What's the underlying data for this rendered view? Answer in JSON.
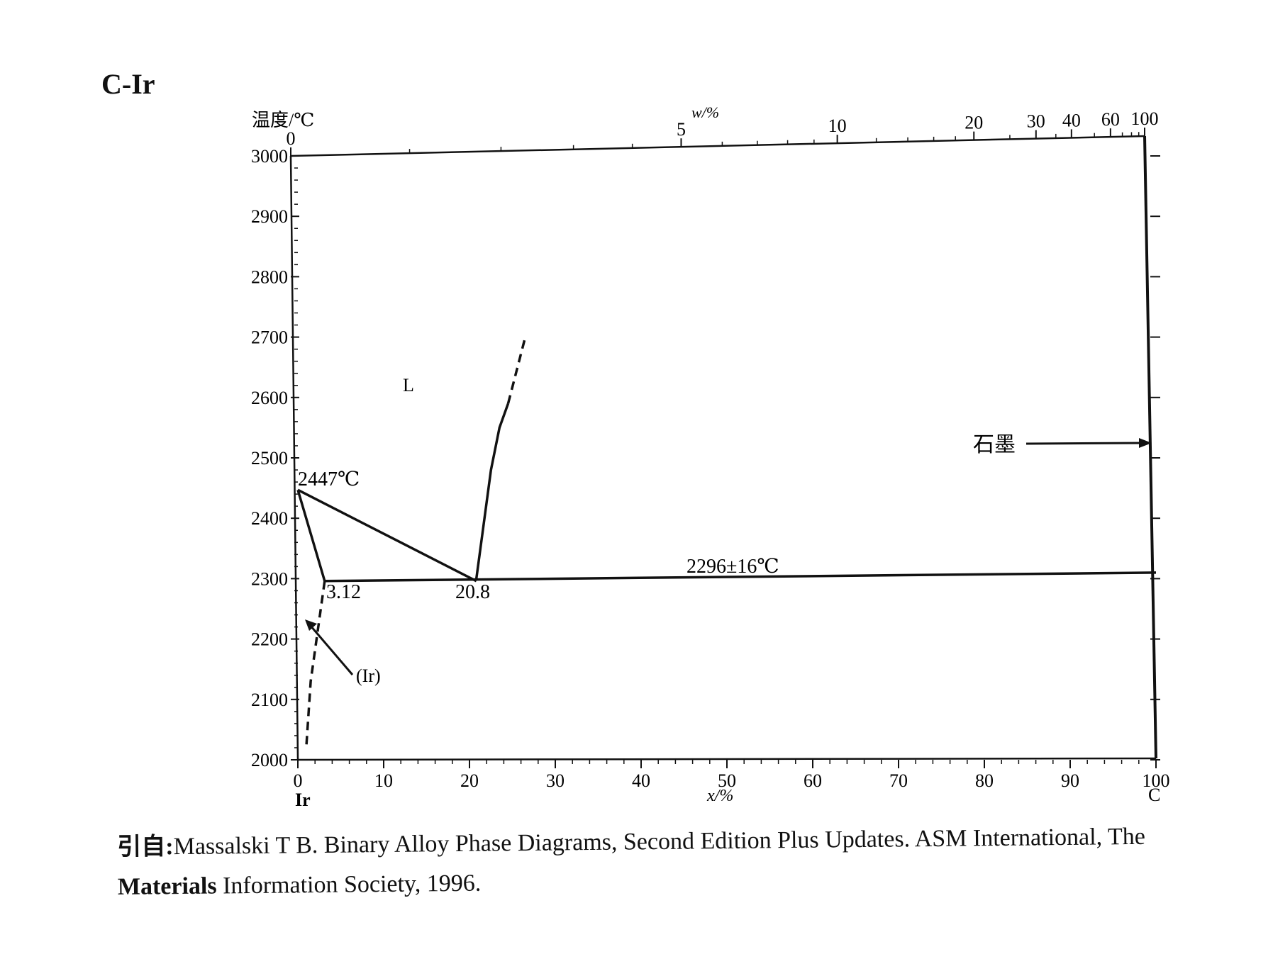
{
  "title": "C-Ir",
  "axes": {
    "y_label": "温度/℃",
    "y_ticks": [
      "3000",
      "2900",
      "2800",
      "2700",
      "2600",
      "2500",
      "2400",
      "2300",
      "2200",
      "2100",
      "2000"
    ],
    "x_bottom_label": "x/%",
    "x_bottom_ticks": [
      "0",
      "10",
      "20",
      "30",
      "40",
      "50",
      "60",
      "70",
      "80",
      "90",
      "100"
    ],
    "x_top_label": "w/%",
    "x_top_ticks": [
      "0",
      "5",
      "10",
      "20",
      "30",
      "40",
      "60",
      "100"
    ],
    "left_element": "Ir",
    "right_element": "C"
  },
  "labels": {
    "liquid": "L",
    "ir_melting": "2447℃",
    "solubility": "3.12",
    "eutectic_comp": "20.8",
    "eutectic_temp": "2296±16℃",
    "ir_phase": "(Ir)",
    "graphite": "石墨"
  },
  "chart_data": {
    "type": "phase_diagram",
    "system": "C-Ir",
    "xlabel": "x/%",
    "ylabel": "温度/℃",
    "top_axis_label": "w/%",
    "xlim": [
      0,
      100
    ],
    "ylim": [
      2000,
      3000
    ],
    "points": {
      "ir_melting": {
        "x": 0,
        "y": 2447
      },
      "max_solubility": {
        "x": 3.12,
        "y": 2296
      },
      "eutectic": {
        "x": 20.8,
        "y": 2296
      }
    },
    "lines": [
      {
        "name": "liquidus_left",
        "style": "solid",
        "points": [
          [
            0,
            2447
          ],
          [
            20.8,
            2296
          ]
        ]
      },
      {
        "name": "solidus",
        "style": "solid",
        "points": [
          [
            0,
            2447
          ],
          [
            3.12,
            2296
          ]
        ]
      },
      {
        "name": "eutectic_line",
        "style": "solid",
        "points": [
          [
            3.12,
            2296
          ],
          [
            100,
            2310
          ]
        ]
      },
      {
        "name": "liquidus_right",
        "style": "solid",
        "points": [
          [
            20.8,
            2300
          ],
          [
            22.5,
            2480
          ],
          [
            23.5,
            2550
          ],
          [
            24.5,
            2590
          ]
        ]
      },
      {
        "name": "liquidus_right_est",
        "style": "dashed",
        "points": [
          [
            24.5,
            2590
          ],
          [
            26.5,
            2700
          ]
        ]
      },
      {
        "name": "solvus",
        "style": "dashed",
        "points": [
          [
            3.12,
            2296
          ],
          [
            1.5,
            2130
          ],
          [
            1.0,
            2025
          ]
        ]
      }
    ]
  },
  "caption": {
    "prefix": "引自:",
    "line1": "Massalski T B. Binary Alloy Phase Diagrams, Second Edition Plus Updates. ASM International, The",
    "line2_bold": "Materials",
    "line2": " Information Society, 1996."
  }
}
